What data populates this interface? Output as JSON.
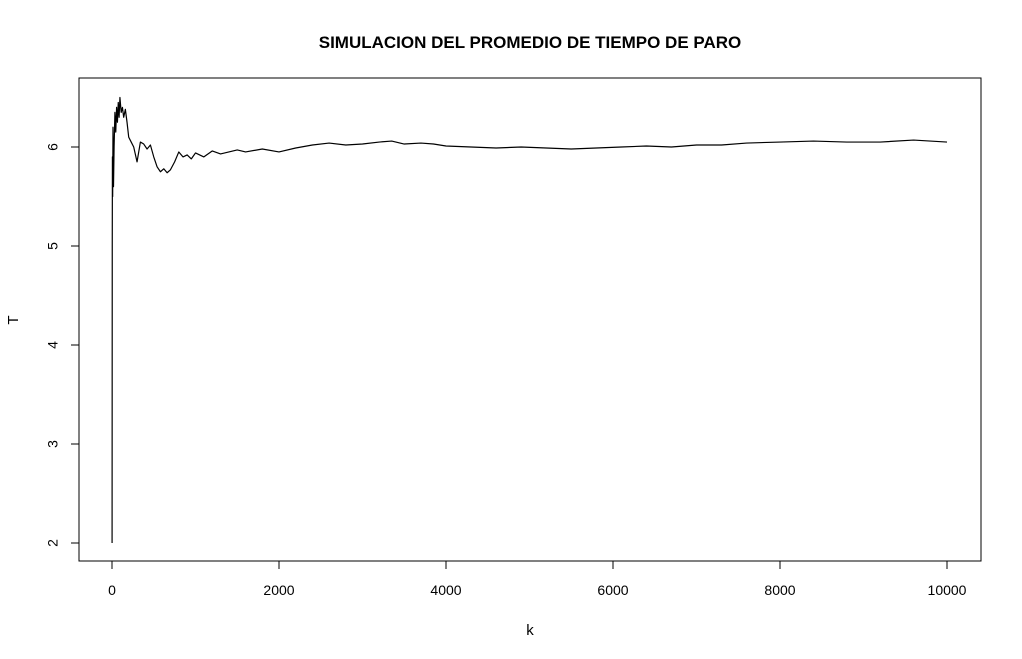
{
  "chart_data": {
    "type": "line",
    "title": "SIMULACION DEL PROMEDIO DE TIEMPO DE PARO",
    "xlabel": "k",
    "ylabel": "T",
    "xlim": [
      0,
      10000
    ],
    "ylim": [
      2,
      6.5
    ],
    "x_ticks": [
      0,
      2000,
      4000,
      6000,
      8000,
      10000
    ],
    "y_ticks": [
      2,
      3,
      4,
      5,
      6
    ],
    "x_tick_labels": [
      "0",
      "2000",
      "4000",
      "6000",
      "8000",
      "10000"
    ],
    "y_tick_labels": [
      "2",
      "3",
      "4",
      "5",
      "6"
    ],
    "grid": false,
    "series": [
      {
        "color": "#000000",
        "x": [
          1,
          3,
          5,
          8,
          12,
          18,
          25,
          35,
          45,
          55,
          65,
          75,
          85,
          95,
          110,
          125,
          140,
          160,
          180,
          200,
          230,
          260,
          300,
          340,
          380,
          420,
          460,
          500,
          540,
          580,
          620,
          660,
          700,
          750,
          800,
          850,
          900,
          950,
          1000,
          1100,
          1200,
          1300,
          1400,
          1500,
          1600,
          1800,
          2000,
          2200,
          2400,
          2600,
          2800,
          3000,
          3200,
          3350,
          3500,
          3700,
          3850,
          4000,
          4300,
          4600,
          4900,
          5200,
          5500,
          5800,
          6100,
          6400,
          6700,
          7000,
          7300,
          7600,
          8000,
          8400,
          8800,
          9200,
          9600,
          10000
        ],
        "y": [
          2.0,
          5.0,
          5.9,
          5.5,
          6.2,
          5.6,
          6.0,
          6.35,
          6.15,
          6.4,
          6.25,
          6.45,
          6.3,
          6.5,
          6.35,
          6.4,
          6.3,
          6.38,
          6.25,
          6.1,
          6.05,
          6.0,
          5.85,
          6.05,
          6.03,
          5.98,
          6.02,
          5.9,
          5.8,
          5.75,
          5.78,
          5.74,
          5.77,
          5.85,
          5.95,
          5.9,
          5.92,
          5.88,
          5.94,
          5.9,
          5.96,
          5.93,
          5.95,
          5.97,
          5.95,
          5.98,
          5.95,
          5.99,
          6.02,
          6.04,
          6.02,
          6.03,
          6.05,
          6.06,
          6.03,
          6.04,
          6.03,
          6.01,
          6.0,
          5.99,
          6.0,
          5.99,
          5.98,
          5.99,
          6.0,
          6.01,
          6.0,
          6.02,
          6.02,
          6.04,
          6.05,
          6.06,
          6.05,
          6.05,
          6.07,
          6.05
        ]
      }
    ]
  }
}
